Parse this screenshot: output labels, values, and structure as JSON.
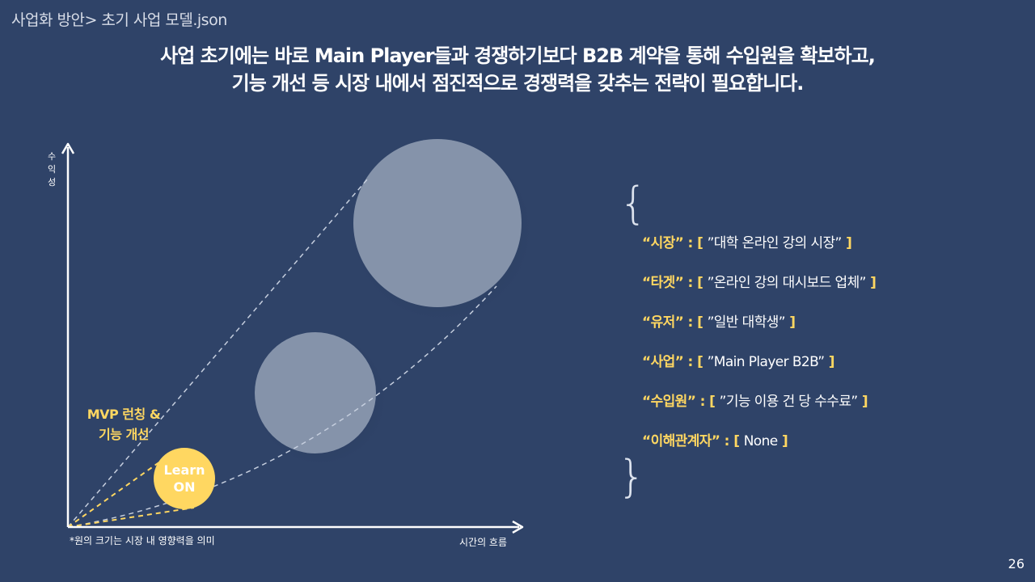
{
  "breadcrumb": "사업화 방안> 초기 사업 모델.json",
  "headline": {
    "line1": "사업 초기에는 바로 Main Player들과 경쟁하기보다 B2B 계약을 통해 수입원을 확보하고,",
    "line2": "기능 개선 등 시장 내에서 점진적으로 경쟁력을 갖추는 전략이 필요합니다."
  },
  "diagram": {
    "y_axis_label": "수익성",
    "x_axis_label": "시간의 흐름",
    "footnote": "*원의 크기는 시장 내 영향력을 의미",
    "mvp_label_line1": "MVP 런칭 &",
    "mvp_label_line2": "기능 개선",
    "learnon_line1": "Learn",
    "learnon_line2": "ON"
  },
  "model": {
    "brace_open": "{",
    "brace_close": "}",
    "items": [
      {
        "key": "“시장”",
        "sep": " : [ ",
        "value": "”대학 온라인 강의 시장”",
        "end": " ]"
      },
      {
        "key": "“타겟”",
        "sep": " : [ ",
        "value": "”온라인 강의 대시보드 업체”",
        "end": " ]"
      },
      {
        "key": "“유저”",
        "sep": " : [ ",
        "value": "”일반 대학생”",
        "end": " ]"
      },
      {
        "key": "“사업”",
        "sep": " : [ ",
        "value": "”Main Player B2B”",
        "end": " ]"
      },
      {
        "key": "“수입원”",
        "sep": " : [ ",
        "value": "”기능 이용 건 당 수수료”",
        "end": " ]"
      },
      {
        "key": "“이해관계자”",
        "sep": " : [ ",
        "value": "None",
        "end": " ]"
      }
    ]
  },
  "page_number": "26",
  "colors": {
    "background": "#2f4368",
    "accent": "#ffd761",
    "circle": "#8593aa"
  }
}
